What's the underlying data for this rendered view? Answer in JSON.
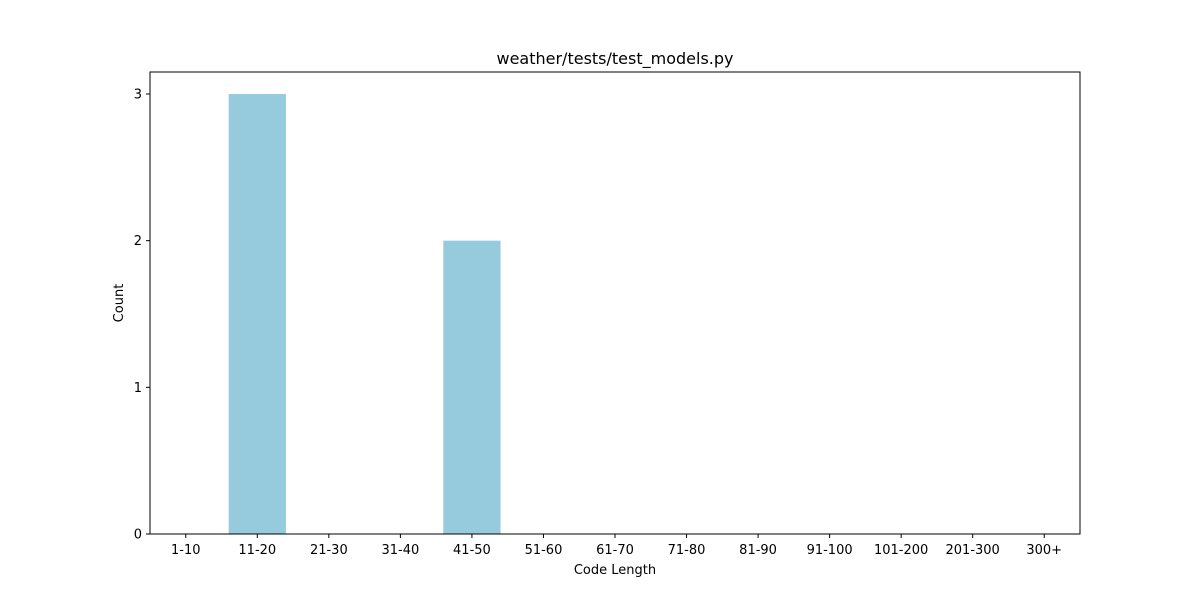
{
  "chart_data": {
    "type": "bar",
    "title": "weather/tests/test_models.py",
    "xlabel": "Code Length",
    "ylabel": "Count",
    "categories": [
      "1-10",
      "11-20",
      "21-30",
      "31-40",
      "41-50",
      "51-60",
      "61-70",
      "71-80",
      "81-90",
      "91-100",
      "101-200",
      "201-300",
      "300+"
    ],
    "values": [
      0,
      3,
      0,
      0,
      2,
      0,
      0,
      0,
      0,
      0,
      0,
      0,
      0
    ],
    "ylim": [
      0,
      3.15
    ],
    "yticks": [
      0,
      1,
      2,
      3
    ],
    "bar_color": "#96cadd",
    "grid": false,
    "legend": "none"
  }
}
